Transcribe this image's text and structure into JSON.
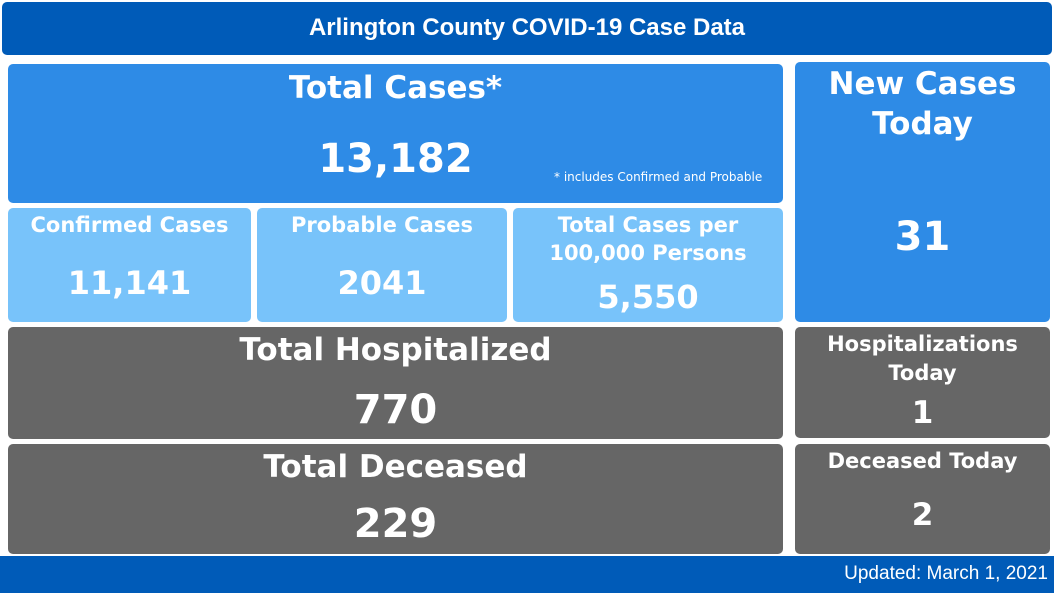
{
  "header": {
    "title": "Arlington County COVID-19 Case Data"
  },
  "total_cases": {
    "label": "Total Cases*",
    "value": "13,182",
    "note": "* includes Confirmed and Probable"
  },
  "confirmed": {
    "label": "Confirmed Cases",
    "value": "11,141"
  },
  "probable": {
    "label": "Probable Cases",
    "value": "2041"
  },
  "per_100k": {
    "label_line1": "Total Cases per",
    "label_line2": "100,000 Persons",
    "value": "5,550"
  },
  "new_cases": {
    "label_line1": "New Cases",
    "label_line2": "Today",
    "value": "31"
  },
  "hospitalized": {
    "label": "Total Hospitalized",
    "value": "770"
  },
  "hosp_today": {
    "label_line1": "Hospitalizations",
    "label_line2": "Today",
    "value": "1"
  },
  "deceased": {
    "label": "Total Deceased",
    "value": "229"
  },
  "deceased_today": {
    "label": "Deceased Today",
    "value": "2"
  },
  "footer": {
    "updated": "Updated: March 1, 2021"
  },
  "colors": {
    "header": "#005bb8",
    "primary": "#2e8be6",
    "secondary": "#78c3fa",
    "neutral": "#666666"
  }
}
